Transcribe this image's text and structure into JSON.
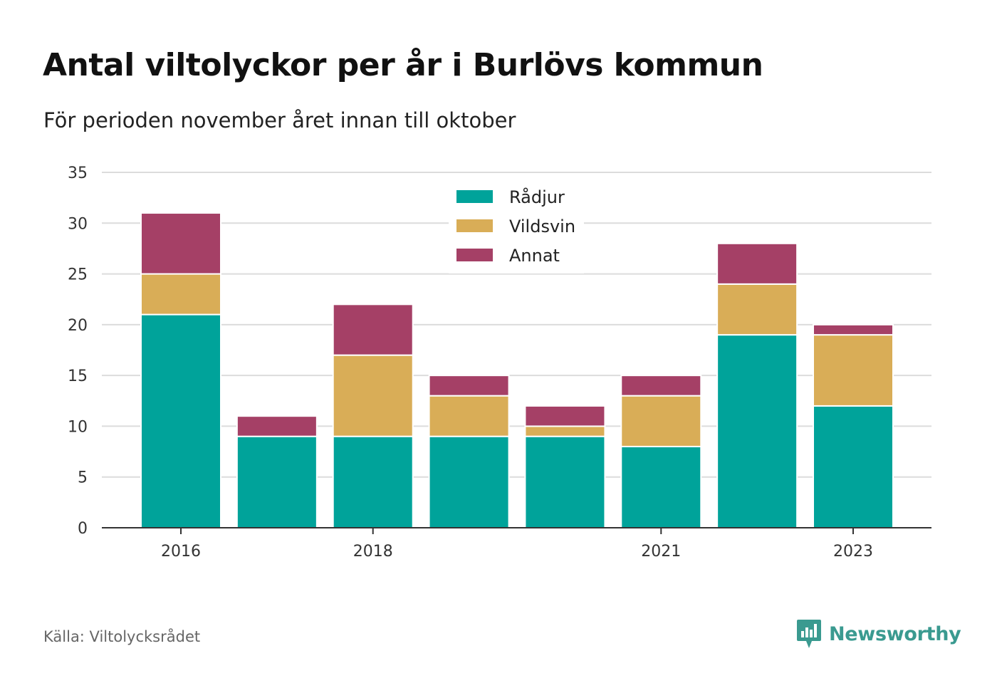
{
  "header": {
    "title": "Antal viltolyckor per år i Burlövs kommun",
    "subtitle": "För perioden november året innan till oktober"
  },
  "footer": {
    "source": "Källa: Viltolycksrådet",
    "brand": "Newsworthy",
    "brand_icon": "newsworthy-logo-icon",
    "brand_color": "#3a9a90"
  },
  "chart_data": {
    "type": "bar",
    "stacked": true,
    "categories": [
      "2016",
      "2017",
      "2018",
      "2019",
      "2020",
      "2021",
      "2022",
      "2023"
    ],
    "x_tick_labels": [
      "2016",
      "",
      "2018",
      "",
      "",
      "2021",
      "",
      "2023"
    ],
    "series": [
      {
        "name": "Rådjur",
        "color": "#00a39a",
        "values": [
          21,
          9,
          9,
          9,
          9,
          8,
          19,
          12
        ]
      },
      {
        "name": "Vildsvin",
        "color": "#d9ad57",
        "values": [
          4,
          0,
          8,
          4,
          1,
          5,
          5,
          7
        ]
      },
      {
        "name": "Annat",
        "color": "#a54066",
        "values": [
          6,
          2,
          5,
          2,
          2,
          2,
          4,
          1
        ]
      }
    ],
    "ylim": [
      0,
      35
    ],
    "yticks": [
      0,
      5,
      10,
      15,
      20,
      25,
      30,
      35
    ],
    "xlabel": "",
    "ylabel": "",
    "grid": true,
    "legend_position": "top-center"
  }
}
